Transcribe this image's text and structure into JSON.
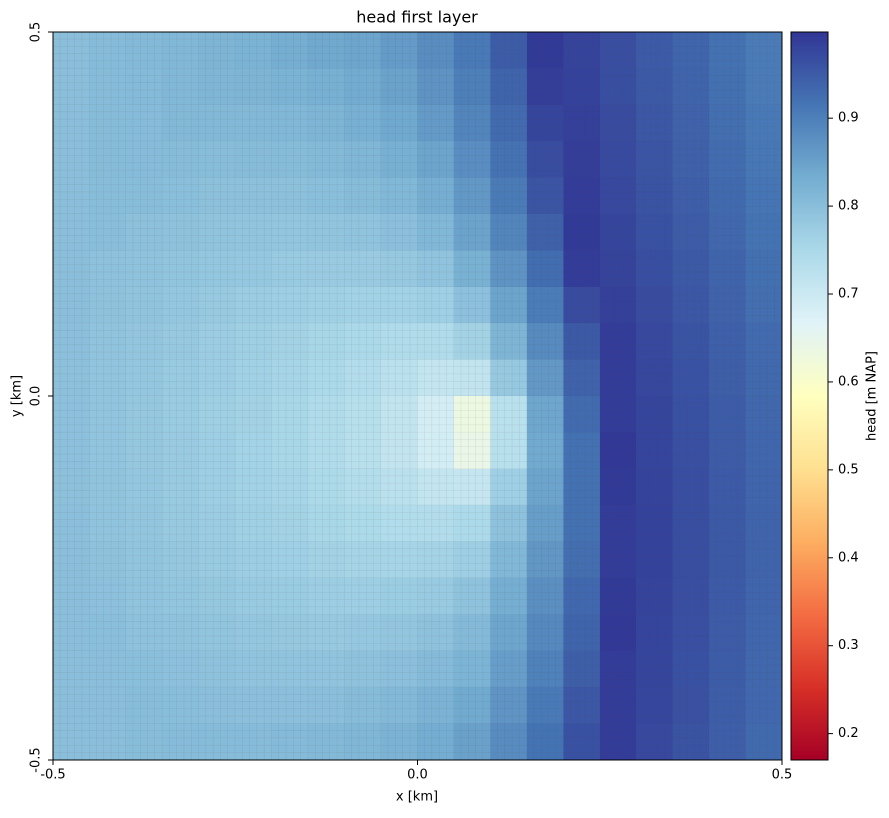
{
  "chart_data": {
    "type": "heatmap",
    "title": "head first layer",
    "xlabel": "x [km]",
    "ylabel": "y [km]",
    "colormap": "RdYlBu",
    "xlim": [
      -0.5,
      0.5
    ],
    "ylim": [
      -0.5,
      0.5
    ],
    "xticks": [
      -0.5,
      {
        "value": 0,
        "label": "0.0"
      },
      0.5
    ],
    "yticks": [
      -0.5,
      {
        "value": 0,
        "label": "0.0"
      },
      0.5
    ],
    "x": [
      -0.475,
      -0.425,
      -0.375,
      -0.325,
      -0.275,
      -0.225,
      -0.175,
      -0.125,
      -0.075,
      -0.025,
      0.025,
      0.075,
      0.125,
      0.175,
      0.225,
      0.275,
      0.325,
      0.375,
      0.425,
      0.475
    ],
    "y": [
      0.475,
      0.425,
      0.375,
      0.325,
      0.275,
      0.225,
      0.175,
      0.125,
      0.075,
      0.025,
      -0.025,
      -0.075,
      -0.125,
      -0.175,
      -0.225,
      -0.275,
      -0.325,
      -0.375,
      -0.425,
      -0.475
    ],
    "values": [
      [
        0.8,
        0.805,
        0.808,
        0.811,
        0.817,
        0.822,
        0.83,
        0.84,
        0.844,
        0.859,
        0.88,
        0.909,
        0.948,
        0.993,
        0.981,
        0.966,
        0.951,
        0.936,
        0.921,
        0.906
      ],
      [
        0.8,
        0.805,
        0.807,
        0.811,
        0.816,
        0.818,
        0.822,
        0.826,
        0.835,
        0.849,
        0.871,
        0.901,
        0.938,
        0.987,
        0.982,
        0.967,
        0.952,
        0.937,
        0.922,
        0.907
      ],
      [
        0.8,
        0.804,
        0.806,
        0.81,
        0.81,
        0.81,
        0.813,
        0.818,
        0.826,
        0.839,
        0.861,
        0.892,
        0.929,
        0.978,
        0.985,
        0.97,
        0.955,
        0.94,
        0.925,
        0.91
      ],
      [
        0.8,
        0.804,
        0.806,
        0.804,
        0.803,
        0.804,
        0.804,
        0.808,
        0.815,
        0.826,
        0.846,
        0.879,
        0.919,
        0.969,
        0.987,
        0.972,
        0.957,
        0.942,
        0.927,
        0.912
      ],
      [
        0.8,
        0.803,
        0.802,
        0.799,
        0.797,
        0.797,
        0.797,
        0.799,
        0.804,
        0.813,
        0.83,
        0.864,
        0.907,
        0.957,
        0.99,
        0.975,
        0.96,
        0.945,
        0.93,
        0.915
      ],
      [
        0.8,
        0.801,
        0.797,
        0.793,
        0.791,
        0.789,
        0.787,
        0.788,
        0.791,
        0.798,
        0.813,
        0.847,
        0.892,
        0.942,
        0.993,
        0.978,
        0.963,
        0.948,
        0.933,
        0.918
      ],
      [
        0.8,
        0.795,
        0.792,
        0.788,
        0.785,
        0.782,
        0.778,
        0.777,
        0.777,
        0.781,
        0.791,
        0.825,
        0.871,
        0.926,
        0.99,
        0.981,
        0.967,
        0.952,
        0.937,
        0.922
      ],
      [
        0.8,
        0.793,
        0.79,
        0.784,
        0.779,
        0.775,
        0.77,
        0.766,
        0.763,
        0.763,
        0.768,
        0.796,
        0.846,
        0.905,
        0.971,
        0.985,
        0.97,
        0.955,
        0.94,
        0.925
      ],
      [
        0.798,
        0.791,
        0.786,
        0.781,
        0.774,
        0.769,
        0.762,
        0.756,
        0.75,
        0.744,
        0.742,
        0.762,
        0.817,
        0.884,
        0.952,
        0.99,
        0.974,
        0.959,
        0.944,
        0.929
      ],
      [
        0.797,
        0.789,
        0.784,
        0.778,
        0.772,
        0.765,
        0.757,
        0.749,
        0.739,
        0.726,
        0.712,
        0.715,
        0.781,
        0.863,
        0.94,
        0.99,
        0.976,
        0.961,
        0.946,
        0.931
      ],
      [
        0.796,
        0.789,
        0.783,
        0.776,
        0.769,
        0.762,
        0.754,
        0.744,
        0.732,
        0.715,
        0.685,
        0.634,
        0.728,
        0.843,
        0.928,
        0.99,
        0.978,
        0.963,
        0.948,
        0.933
      ],
      [
        0.796,
        0.789,
        0.783,
        0.777,
        0.77,
        0.761,
        0.754,
        0.742,
        0.731,
        0.714,
        0.687,
        0.644,
        0.731,
        0.838,
        0.921,
        0.995,
        0.98,
        0.965,
        0.95,
        0.935
      ],
      [
        0.797,
        0.79,
        0.784,
        0.778,
        0.771,
        0.763,
        0.757,
        0.747,
        0.737,
        0.726,
        0.712,
        0.709,
        0.768,
        0.845,
        0.92,
        0.993,
        0.981,
        0.966,
        0.951,
        0.936
      ],
      [
        0.798,
        0.791,
        0.786,
        0.78,
        0.774,
        0.767,
        0.762,
        0.754,
        0.748,
        0.741,
        0.739,
        0.746,
        0.794,
        0.855,
        0.921,
        0.99,
        0.982,
        0.967,
        0.952,
        0.937
      ],
      [
        0.8,
        0.793,
        0.788,
        0.783,
        0.778,
        0.772,
        0.768,
        0.762,
        0.759,
        0.757,
        0.76,
        0.771,
        0.813,
        0.866,
        0.925,
        0.99,
        0.982,
        0.967,
        0.952,
        0.937
      ],
      [
        0.8,
        0.796,
        0.791,
        0.787,
        0.783,
        0.778,
        0.776,
        0.772,
        0.771,
        0.773,
        0.778,
        0.792,
        0.83,
        0.877,
        0.932,
        0.993,
        0.981,
        0.966,
        0.951,
        0.936
      ],
      [
        0.8,
        0.799,
        0.795,
        0.792,
        0.788,
        0.784,
        0.783,
        0.781,
        0.782,
        0.786,
        0.794,
        0.808,
        0.844,
        0.887,
        0.938,
        0.995,
        0.98,
        0.965,
        0.95,
        0.935
      ],
      [
        0.8,
        0.8,
        0.799,
        0.796,
        0.793,
        0.791,
        0.791,
        0.791,
        0.793,
        0.798,
        0.807,
        0.82,
        0.856,
        0.898,
        0.946,
        0.99,
        0.978,
        0.963,
        0.948,
        0.933
      ],
      [
        0.8,
        0.8,
        0.803,
        0.801,
        0.8,
        0.798,
        0.798,
        0.8,
        0.804,
        0.81,
        0.821,
        0.837,
        0.87,
        0.908,
        0.954,
        0.99,
        0.977,
        0.962,
        0.947,
        0.932
      ],
      [
        0.8,
        0.8,
        0.803,
        0.806,
        0.805,
        0.806,
        0.807,
        0.81,
        0.814,
        0.821,
        0.833,
        0.85,
        0.881,
        0.918,
        0.963,
        0.99,
        0.975,
        0.96,
        0.945,
        0.93
      ]
    ],
    "colorbar": {
      "label": "head [m NAP]",
      "lim": [
        0.17,
        0.998
      ],
      "ticks": [
        0.2,
        0.3,
        0.4,
        0.5,
        0.6,
        0.7,
        0.8,
        0.9
      ]
    }
  }
}
